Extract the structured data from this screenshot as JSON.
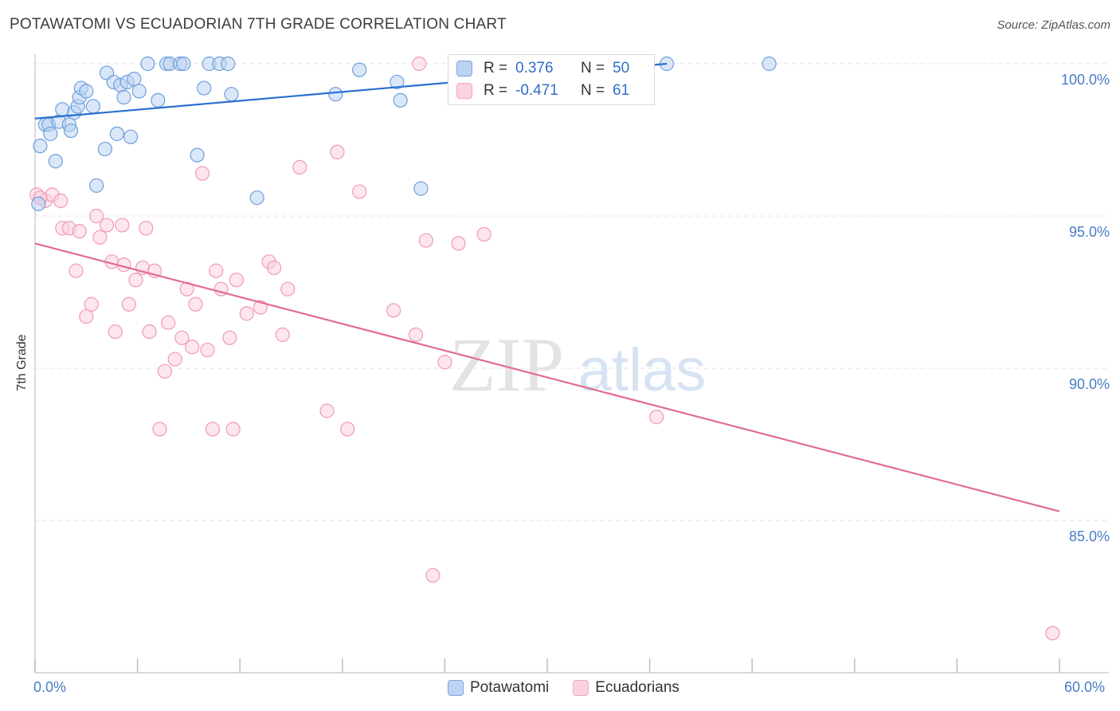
{
  "header": {
    "title": "POTAWATOMI VS ECUADORIAN 7TH GRADE CORRELATION CHART",
    "source": "Source: ZipAtlas.com"
  },
  "watermark": {
    "zip": "ZIP",
    "atlas": "atlas"
  },
  "legend": {
    "r_label": "R =",
    "n_label": "N =",
    "rows": [
      {
        "name": "Potawatomi",
        "r": "0.376",
        "n": "50"
      },
      {
        "name": "Ecuadorians",
        "r": "-0.471",
        "n": "61"
      }
    ]
  },
  "chart_data": {
    "type": "scatter",
    "title": "POTAWATOMI VS ECUADORIAN 7TH GRADE CORRELATION CHART",
    "xlabel": "",
    "ylabel": "7th Grade",
    "xlim": [
      0,
      60
    ],
    "ylim": [
      80,
      100.8
    ],
    "x_tick_labels": [
      "0.0%",
      "60.0%"
    ],
    "y_ticks": [
      85,
      90,
      95,
      100
    ],
    "y_tick_labels": [
      "85.0%",
      "90.0%",
      "95.0%",
      "100.0%"
    ],
    "grid": true,
    "legend_position": "top-center",
    "colors": {
      "Potawatomi": "#7ba7e0",
      "Ecuadorians": "#f3a6c0",
      "blue_line": "#2970d0",
      "pink_line": "#e06b98"
    },
    "series": [
      {
        "name": "Potawatomi",
        "trend": {
          "x": [
            0,
            37
          ],
          "y": [
            98.2,
            100.0
          ]
        },
        "points": [
          [
            0.2,
            95.4
          ],
          [
            0.3,
            97.3
          ],
          [
            0.6,
            98.0
          ],
          [
            0.8,
            98.0
          ],
          [
            0.9,
            97.7
          ],
          [
            1.2,
            96.8
          ],
          [
            1.4,
            98.1
          ],
          [
            1.6,
            98.5
          ],
          [
            2.0,
            98.0
          ],
          [
            2.1,
            97.8
          ],
          [
            2.3,
            98.4
          ],
          [
            2.5,
            98.6
          ],
          [
            2.6,
            98.9
          ],
          [
            2.7,
            99.2
          ],
          [
            3.0,
            99.1
          ],
          [
            3.4,
            98.6
          ],
          [
            3.6,
            96.0
          ],
          [
            4.1,
            97.2
          ],
          [
            4.2,
            99.7
          ],
          [
            4.6,
            99.4
          ],
          [
            4.8,
            97.7
          ],
          [
            5.0,
            99.3
          ],
          [
            5.2,
            98.9
          ],
          [
            5.4,
            99.4
          ],
          [
            5.6,
            97.6
          ],
          [
            5.8,
            99.5
          ],
          [
            6.1,
            99.1
          ],
          [
            6.6,
            100.0
          ],
          [
            7.2,
            98.8
          ],
          [
            7.7,
            100.0
          ],
          [
            7.9,
            100.0
          ],
          [
            8.5,
            100.0
          ],
          [
            8.7,
            100.0
          ],
          [
            9.5,
            97.0
          ],
          [
            9.9,
            99.2
          ],
          [
            10.2,
            100.0
          ],
          [
            10.8,
            100.0
          ],
          [
            11.3,
            100.0
          ],
          [
            11.5,
            99.0
          ],
          [
            13.0,
            95.6
          ],
          [
            17.6,
            99.0
          ],
          [
            19.0,
            99.8
          ],
          [
            21.2,
            99.4
          ],
          [
            21.4,
            98.8
          ],
          [
            22.6,
            95.9
          ],
          [
            25.0,
            100.0
          ],
          [
            31.7,
            100.0
          ],
          [
            32.0,
            100.0
          ],
          [
            37.0,
            100.0
          ],
          [
            43.0,
            100.0
          ]
        ]
      },
      {
        "name": "Ecuadorians",
        "trend": {
          "x": [
            0,
            60
          ],
          "y": [
            94.1,
            85.3
          ]
        },
        "points": [
          [
            0.1,
            95.7
          ],
          [
            0.6,
            95.5
          ],
          [
            1.0,
            95.7
          ],
          [
            1.5,
            95.5
          ],
          [
            1.6,
            94.6
          ],
          [
            2.0,
            94.6
          ],
          [
            2.4,
            93.2
          ],
          [
            2.6,
            94.5
          ],
          [
            3.0,
            91.7
          ],
          [
            3.3,
            92.1
          ],
          [
            3.6,
            95.0
          ],
          [
            3.8,
            94.3
          ],
          [
            4.2,
            94.7
          ],
          [
            4.5,
            93.5
          ],
          [
            4.7,
            91.2
          ],
          [
            5.1,
            94.7
          ],
          [
            5.2,
            93.4
          ],
          [
            5.5,
            92.1
          ],
          [
            5.9,
            92.9
          ],
          [
            6.3,
            93.3
          ],
          [
            6.5,
            94.6
          ],
          [
            6.7,
            91.2
          ],
          [
            7.0,
            93.2
          ],
          [
            7.3,
            88.0
          ],
          [
            7.6,
            89.9
          ],
          [
            7.8,
            91.5
          ],
          [
            8.2,
            90.3
          ],
          [
            8.6,
            91.0
          ],
          [
            8.9,
            92.6
          ],
          [
            9.2,
            90.7
          ],
          [
            9.4,
            92.1
          ],
          [
            9.8,
            96.4
          ],
          [
            10.1,
            90.6
          ],
          [
            10.4,
            88.0
          ],
          [
            10.6,
            93.2
          ],
          [
            10.9,
            92.6
          ],
          [
            11.4,
            91.0
          ],
          [
            11.6,
            88.0
          ],
          [
            11.8,
            92.9
          ],
          [
            12.4,
            91.8
          ],
          [
            13.2,
            92.0
          ],
          [
            13.7,
            93.5
          ],
          [
            14.0,
            93.3
          ],
          [
            14.5,
            91.1
          ],
          [
            14.8,
            92.6
          ],
          [
            15.5,
            96.6
          ],
          [
            17.1,
            88.6
          ],
          [
            17.7,
            97.1
          ],
          [
            18.3,
            88.0
          ],
          [
            19.0,
            95.8
          ],
          [
            21.0,
            91.9
          ],
          [
            22.3,
            91.1
          ],
          [
            22.5,
            100.0
          ],
          [
            22.9,
            94.2
          ],
          [
            23.3,
            83.2
          ],
          [
            24.0,
            90.2
          ],
          [
            24.8,
            94.1
          ],
          [
            26.3,
            94.4
          ],
          [
            36.4,
            88.4
          ],
          [
            59.6,
            81.3
          ],
          [
            0.3,
            95.6
          ]
        ]
      }
    ]
  }
}
